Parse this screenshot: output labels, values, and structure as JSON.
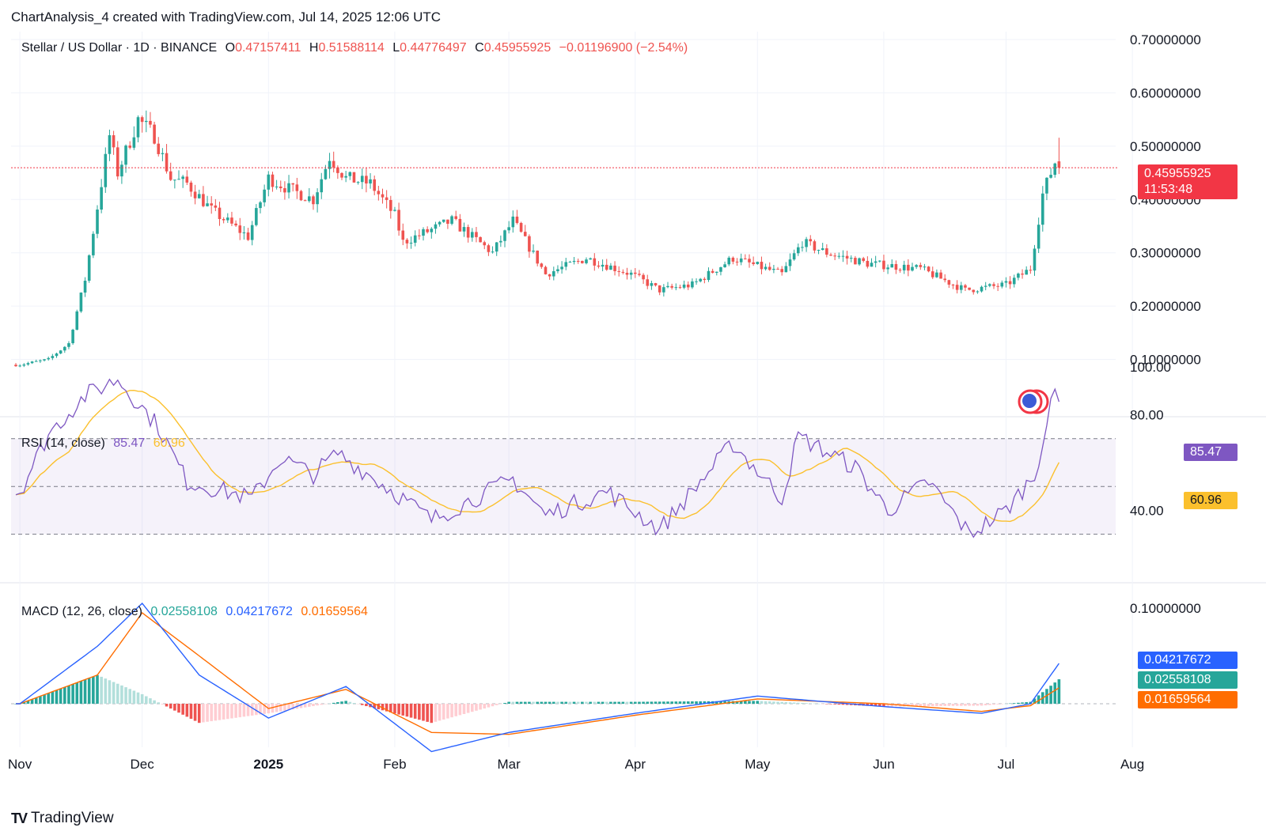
{
  "header": {
    "caption": "ChartAnalysis_4 created with TradingView.com, Jul 14, 2025 12:06 UTC"
  },
  "symbol": {
    "name": "Stellar / US Dollar · 1D · BINANCE",
    "open_label": "O",
    "open": "0.47157411",
    "high_label": "H",
    "high": "0.51588114",
    "low_label": "L",
    "low": "0.44776497",
    "close_label": "C",
    "close": "0.45955925",
    "change": "−0.01196900 (−2.54%)"
  },
  "price_tag": {
    "price": "0.45955925",
    "countdown": "11:53:48"
  },
  "rsi": {
    "label": "RSI (14, close)",
    "value": "85.47",
    "ma": "60.96"
  },
  "macd": {
    "label": "MACD (12, 26, close)",
    "hist": "0.02558108",
    "macd": "0.04217672",
    "signal": "0.01659564"
  },
  "colors": {
    "up": "#26a69a",
    "down": "#ef5350",
    "rsi": "#7e57c2",
    "rsi_ma": "#fbc02d",
    "macd": "#2962ff",
    "signal": "#ff6d00",
    "text": "#131722",
    "grid": "#f0f3fa"
  },
  "branding": {
    "logo_text": "TradingView",
    "logo_mark": "TV"
  },
  "chart_data": {
    "type": "candlestick",
    "title": "Stellar / US Dollar · 1D · BINANCE",
    "x_ticks": [
      "Nov",
      "Dec",
      "2025",
      "Feb",
      "Mar",
      "Apr",
      "May",
      "Jun",
      "Jul",
      "Aug"
    ],
    "price_axis": {
      "ylim": [
        0.0,
        0.7
      ],
      "ticks": [
        "0.10000000",
        "0.20000000",
        "0.30000000",
        "0.40000000",
        "0.50000000",
        "0.60000000",
        "0.70000000"
      ]
    },
    "rsi_axis": {
      "ticks": [
        "40.00",
        "80.00",
        "100.00"
      ],
      "upper_band": 70,
      "mid": 50,
      "lower_band": 30
    },
    "macd_axis": {
      "ticks": [
        "0.10000000"
      ]
    },
    "price_anchors": [
      {
        "date": "2024-11-01",
        "close": 0.09
      },
      {
        "date": "2024-11-08",
        "close": 0.1
      },
      {
        "date": "2024-11-13",
        "close": 0.13
      },
      {
        "date": "2024-11-17",
        "close": 0.25
      },
      {
        "date": "2024-11-23",
        "close": 0.52
      },
      {
        "date": "2024-11-25",
        "close": 0.45
      },
      {
        "date": "2024-11-30",
        "close": 0.55
      },
      {
        "date": "2024-12-04",
        "close": 0.52
      },
      {
        "date": "2024-12-08",
        "close": 0.44
      },
      {
        "date": "2024-12-12",
        "close": 0.43
      },
      {
        "date": "2024-12-18",
        "close": 0.38
      },
      {
        "date": "2024-12-27",
        "close": 0.33
      },
      {
        "date": "2025-01-01",
        "close": 0.44
      },
      {
        "date": "2025-01-06",
        "close": 0.42
      },
      {
        "date": "2025-01-12",
        "close": 0.4
      },
      {
        "date": "2025-01-16",
        "close": 0.48
      },
      {
        "date": "2025-01-20",
        "close": 0.44
      },
      {
        "date": "2025-01-26",
        "close": 0.43
      },
      {
        "date": "2025-02-01",
        "close": 0.37
      },
      {
        "date": "2025-02-03",
        "close": 0.32
      },
      {
        "date": "2025-02-15",
        "close": 0.36
      },
      {
        "date": "2025-02-25",
        "close": 0.3
      },
      {
        "date": "2025-03-02",
        "close": 0.36
      },
      {
        "date": "2025-03-10",
        "close": 0.26
      },
      {
        "date": "2025-03-20",
        "close": 0.29
      },
      {
        "date": "2025-03-31",
        "close": 0.26
      },
      {
        "date": "2025-04-07",
        "close": 0.23
      },
      {
        "date": "2025-04-15",
        "close": 0.24
      },
      {
        "date": "2025-04-25",
        "close": 0.29
      },
      {
        "date": "2025-05-07",
        "close": 0.26
      },
      {
        "date": "2025-05-12",
        "close": 0.32
      },
      {
        "date": "2025-05-18",
        "close": 0.3
      },
      {
        "date": "2025-05-28",
        "close": 0.28
      },
      {
        "date": "2025-06-10",
        "close": 0.27
      },
      {
        "date": "2025-06-21",
        "close": 0.23
      },
      {
        "date": "2025-07-01",
        "close": 0.24
      },
      {
        "date": "2025-07-07",
        "close": 0.27
      },
      {
        "date": "2025-07-10",
        "close": 0.41
      },
      {
        "date": "2025-07-13",
        "close": 0.47
      },
      {
        "date": "2025-07-14",
        "open": 0.47157411,
        "high": 0.51588114,
        "low": 0.44776497,
        "close": 0.45955925
      }
    ],
    "rsi_anchors": [
      {
        "date": "2024-11-01",
        "value": 48
      },
      {
        "date": "2024-11-08",
        "value": 72
      },
      {
        "date": "2024-11-17",
        "value": 88
      },
      {
        "date": "2024-11-25",
        "value": 95
      },
      {
        "date": "2024-12-05",
        "value": 75
      },
      {
        "date": "2024-12-12",
        "value": 52
      },
      {
        "date": "2024-12-28",
        "value": 45
      },
      {
        "date": "2025-01-04",
        "value": 62
      },
      {
        "date": "2025-01-12",
        "value": 55
      },
      {
        "date": "2025-01-18",
        "value": 64
      },
      {
        "date": "2025-02-03",
        "value": 45
      },
      {
        "date": "2025-02-10",
        "value": 36
      },
      {
        "date": "2025-03-02",
        "value": 53
      },
      {
        "date": "2025-03-10",
        "value": 38
      },
      {
        "date": "2025-03-25",
        "value": 48
      },
      {
        "date": "2025-04-07",
        "value": 32
      },
      {
        "date": "2025-04-25",
        "value": 68
      },
      {
        "date": "2025-05-07",
        "value": 45
      },
      {
        "date": "2025-05-11",
        "value": 71
      },
      {
        "date": "2025-05-25",
        "value": 58
      },
      {
        "date": "2025-06-02",
        "value": 40
      },
      {
        "date": "2025-06-12",
        "value": 52
      },
      {
        "date": "2025-06-22",
        "value": 30
      },
      {
        "date": "2025-07-01",
        "value": 40
      },
      {
        "date": "2025-07-08",
        "value": 55
      },
      {
        "date": "2025-07-13",
        "value": 90
      },
      {
        "date": "2025-07-14",
        "value": 85.47
      }
    ],
    "macd_anchors": [
      {
        "date": "2024-11-01",
        "macd": 0.0,
        "signal": 0.0
      },
      {
        "date": "2024-11-20",
        "macd": 0.06,
        "signal": 0.03
      },
      {
        "date": "2024-12-01",
        "macd": 0.105,
        "signal": 0.095
      },
      {
        "date": "2024-12-15",
        "macd": 0.03,
        "signal": 0.05
      },
      {
        "date": "2025-01-01",
        "macd": -0.015,
        "signal": -0.005
      },
      {
        "date": "2025-01-20",
        "macd": 0.018,
        "signal": 0.015
      },
      {
        "date": "2025-02-10",
        "macd": -0.05,
        "signal": -0.03
      },
      {
        "date": "2025-03-01",
        "macd": -0.03,
        "signal": -0.032
      },
      {
        "date": "2025-04-01",
        "macd": -0.01,
        "signal": -0.012
      },
      {
        "date": "2025-05-01",
        "macd": 0.008,
        "signal": 0.005
      },
      {
        "date": "2025-06-01",
        "macd": -0.003,
        "signal": 0.0
      },
      {
        "date": "2025-06-25",
        "macd": -0.01,
        "signal": -0.008
      },
      {
        "date": "2025-07-07",
        "macd": 0.0,
        "signal": -0.002
      },
      {
        "date": "2025-07-14",
        "macd": 0.04217672,
        "signal": 0.01659564
      }
    ]
  }
}
